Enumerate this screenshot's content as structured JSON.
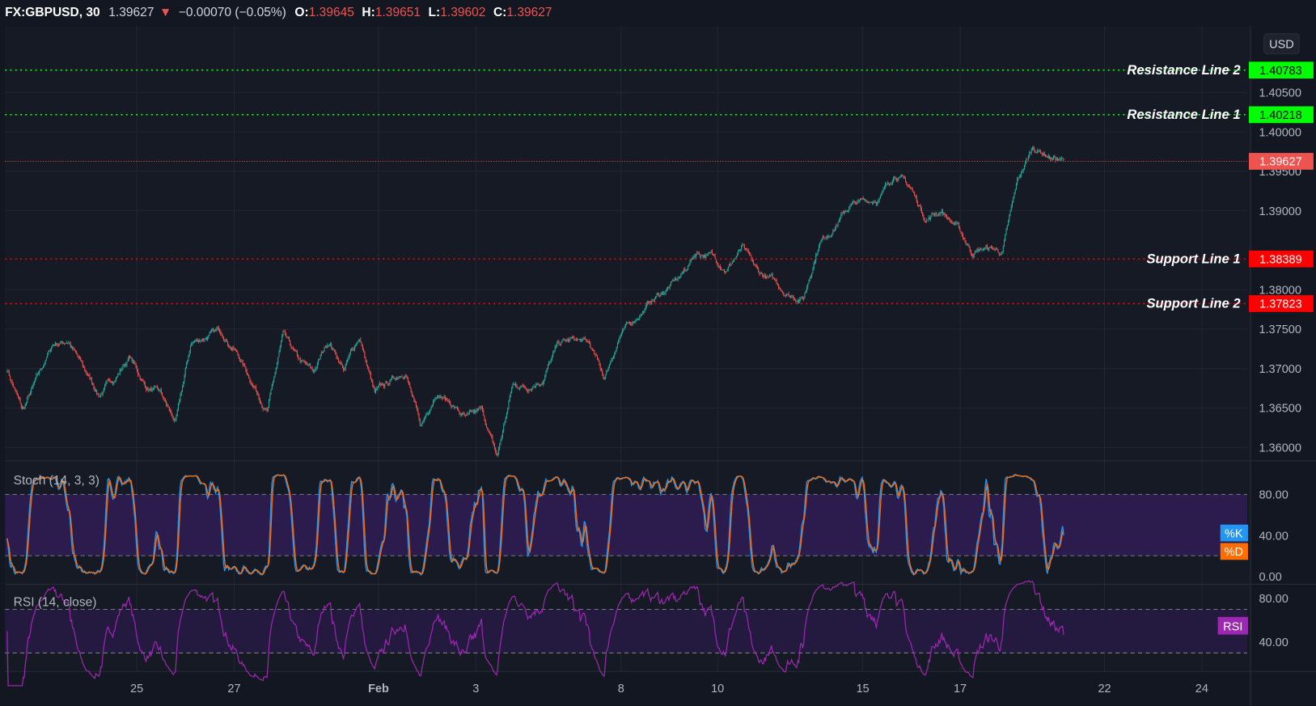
{
  "header": {
    "symbol": "FX:GBPUSD, 30",
    "last": "1.39627",
    "change": "−0.00070 (−0.05%)",
    "o_label": "O:",
    "o": "1.39645",
    "h_label": "H:",
    "h": "1.39651",
    "l_label": "L:",
    "l": "1.39602",
    "c_label": "C:",
    "c": "1.39627",
    "direction": "down"
  },
  "currency_button": "USD",
  "colors": {
    "background": "#131722",
    "up": "#26a69a",
    "down": "#ef5350",
    "resistance": "#00ff00",
    "support": "#ff0000",
    "last_price": "#ef5350",
    "stoch_k": "#2196f3",
    "stoch_d": "#ff6d00",
    "rsi": "#9c27b0"
  },
  "levels": [
    {
      "label": "Resistance Line 2",
      "price": 1.40783,
      "price_text": "1.40783",
      "kind": "resistance"
    },
    {
      "label": "Resistance Line 1",
      "price": 1.40218,
      "price_text": "1.40218",
      "kind": "resistance"
    },
    {
      "label": "Support Line 1",
      "price": 1.38389,
      "price_text": "1.38389",
      "kind": "support"
    },
    {
      "label": "Support Line 2",
      "price": 1.37823,
      "price_text": "1.37823",
      "kind": "support"
    }
  ],
  "last_price_tag": "1.39627",
  "chart_data": {
    "type": "candlestick",
    "interval": "30",
    "price_yticks": [
      "1.40500",
      "1.40000",
      "1.39500",
      "1.39000",
      "1.38000",
      "1.37500",
      "1.37000",
      "1.36500",
      "1.36000"
    ],
    "xticks": [
      "25",
      "27",
      "Feb",
      "3",
      "8",
      "10",
      "15",
      "17",
      "22",
      "24"
    ],
    "close_samples": [
      1.3699,
      1.3646,
      1.3688,
      1.3731,
      1.3736,
      1.3699,
      1.3667,
      1.3688,
      1.3715,
      1.3678,
      1.3667,
      1.363,
      1.3731,
      1.3741,
      1.3747,
      1.372,
      1.3683,
      1.3646,
      1.3741,
      1.371,
      1.3694,
      1.3736,
      1.3699,
      1.3741,
      1.3667,
      1.3683,
      1.3699,
      1.3624,
      1.3672,
      1.3656,
      1.3635,
      1.3646,
      1.3587,
      1.3678,
      1.3678,
      1.3688,
      1.3731,
      1.3736,
      1.3731,
      1.3688,
      1.3741,
      1.3763,
      1.3784,
      1.38,
      1.3816,
      1.3848,
      1.3843,
      1.3827,
      1.3853,
      1.3821,
      1.3811,
      1.3795,
      1.3789,
      1.3859,
      1.388,
      1.3906,
      1.3912,
      1.3917,
      1.3949,
      1.3928,
      1.389,
      1.3901,
      1.388,
      1.3848,
      1.3853,
      1.3848,
      1.3938,
      1.3981,
      1.397,
      1.39627
    ],
    "stoch": {
      "title": "Stoch (14, 3, 3)",
      "k_label": "%K",
      "d_label": "%D",
      "upper": 80,
      "lower": 20,
      "yticks": [
        "80.00",
        "40.00",
        "0.00"
      ]
    },
    "rsi": {
      "title": "RSI (14, close)",
      "label": "RSI",
      "upper": 70,
      "lower": 30,
      "yticks": [
        "80.00",
        "40.00"
      ]
    }
  }
}
